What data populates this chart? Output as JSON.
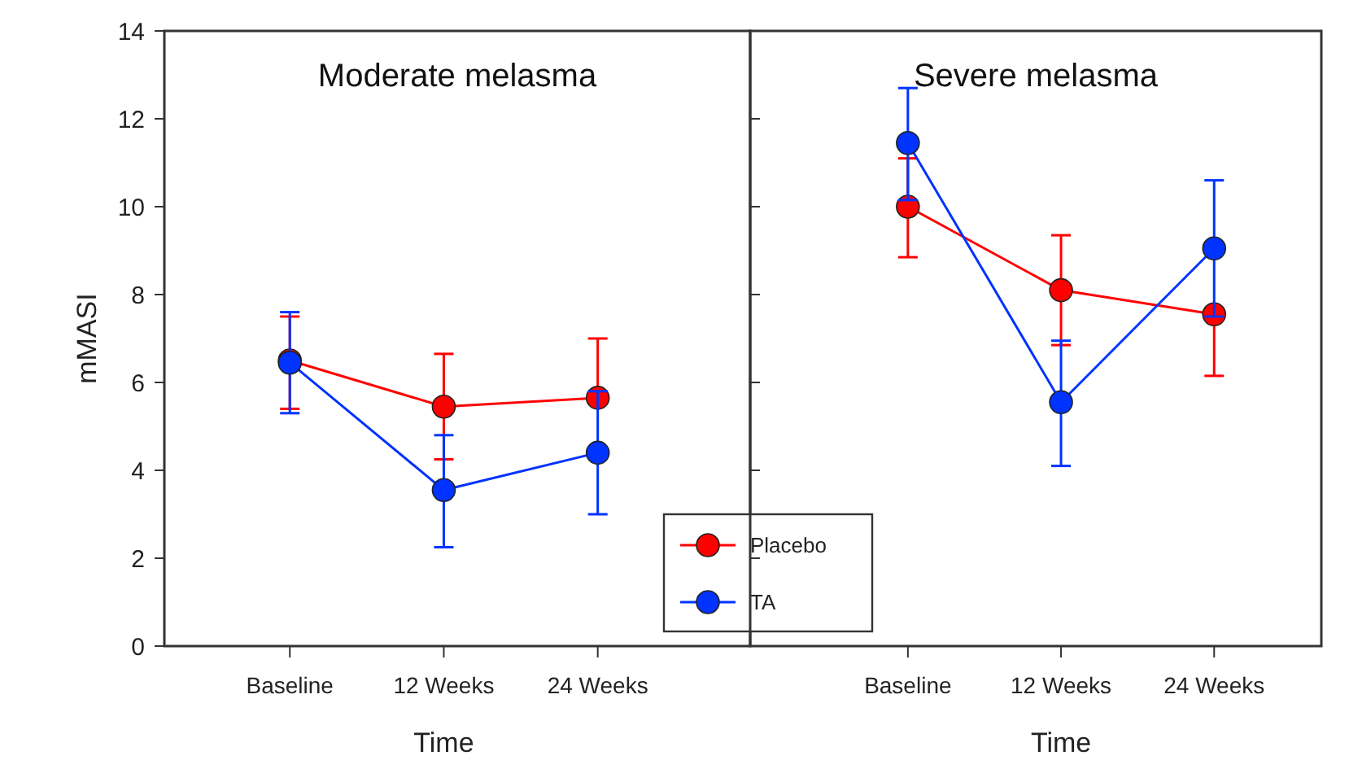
{
  "chart_data": [
    {
      "type": "line",
      "title": "Moderate melasma",
      "xlabel": "Time",
      "ylabel": "mMASI",
      "categories": [
        "Baseline",
        "12 Weeks",
        "24 Weeks"
      ],
      "ylim": [
        0,
        14
      ],
      "yticks": [
        0,
        2,
        4,
        6,
        8,
        10,
        12,
        14
      ],
      "marker": "circle",
      "grid": false,
      "legend": "bottom right",
      "series": [
        {
          "name": "Placebo",
          "color": "#ff0000",
          "values": [
            6.5,
            5.45,
            5.65
          ],
          "errors": [
            [
              5.4,
              7.5
            ],
            [
              4.25,
              6.65
            ],
            [
              5.65,
              7.0
            ]
          ]
        },
        {
          "name": "TA",
          "color": "#0033ff",
          "values": [
            6.45,
            3.55,
            4.4
          ],
          "errors": [
            [
              5.3,
              7.6
            ],
            [
              2.25,
              4.8
            ],
            [
              3.0,
              5.8
            ]
          ]
        }
      ]
    },
    {
      "type": "line",
      "title": "Severe melasma",
      "xlabel": "Time",
      "categories": [
        "Baseline",
        "12 Weeks",
        "24 Weeks"
      ],
      "ylim": [
        0,
        14
      ],
      "yticks": [
        0,
        2,
        4,
        6,
        8,
        10,
        12,
        14
      ],
      "tick_labels": "x",
      "marker": "circle",
      "grid": false,
      "series": [
        {
          "color": "#ff0000",
          "values": [
            10.0,
            8.1,
            7.55
          ],
          "errors": [
            [
              8.85,
              11.1
            ],
            [
              6.85,
              9.35
            ],
            [
              6.15,
              7.55
            ]
          ]
        },
        {
          "color": "#0033ff",
          "values": [
            11.45,
            5.55,
            9.05
          ],
          "errors": [
            [
              10.15,
              12.7
            ],
            [
              4.1,
              6.95
            ],
            [
              7.5,
              10.6
            ]
          ]
        }
      ]
    }
  ]
}
